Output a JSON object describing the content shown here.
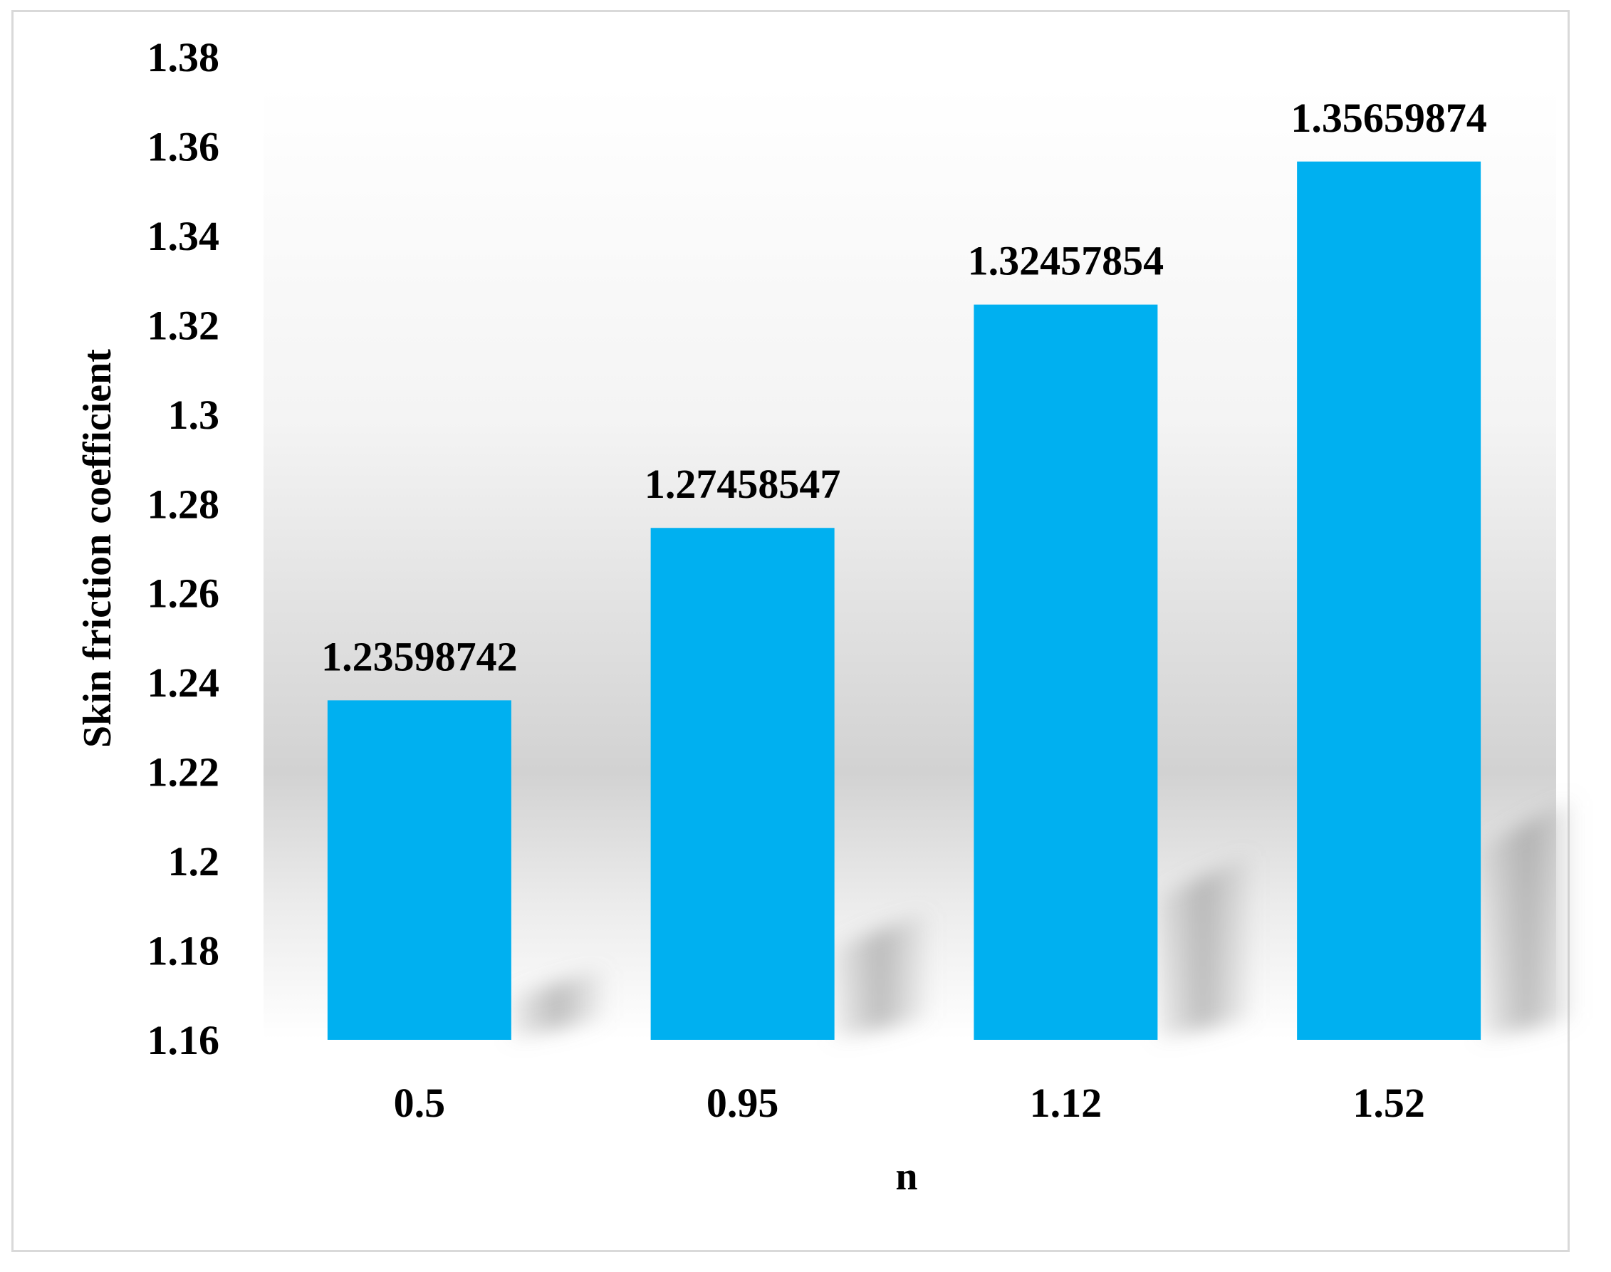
{
  "chart_data": {
    "type": "bar",
    "categories": [
      "0.5",
      "0.95",
      "1.12",
      "1.52"
    ],
    "values": [
      1.23598742,
      1.27458547,
      1.32457854,
      1.35659874
    ],
    "data_labels": [
      "1.23598742",
      "1.27458547",
      "1.32457854",
      "1.35659874"
    ],
    "xlabel": "n",
    "ylabel": "Skin friction coefficient",
    "ylim": [
      1.16,
      1.38
    ],
    "yticks": [
      "1.16",
      "1.18",
      "1.2",
      "1.22",
      "1.24",
      "1.26",
      "1.28",
      "1.3",
      "1.32",
      "1.34",
      "1.36",
      "1.38"
    ],
    "grid": false,
    "bar_color": "#00b0f0"
  }
}
